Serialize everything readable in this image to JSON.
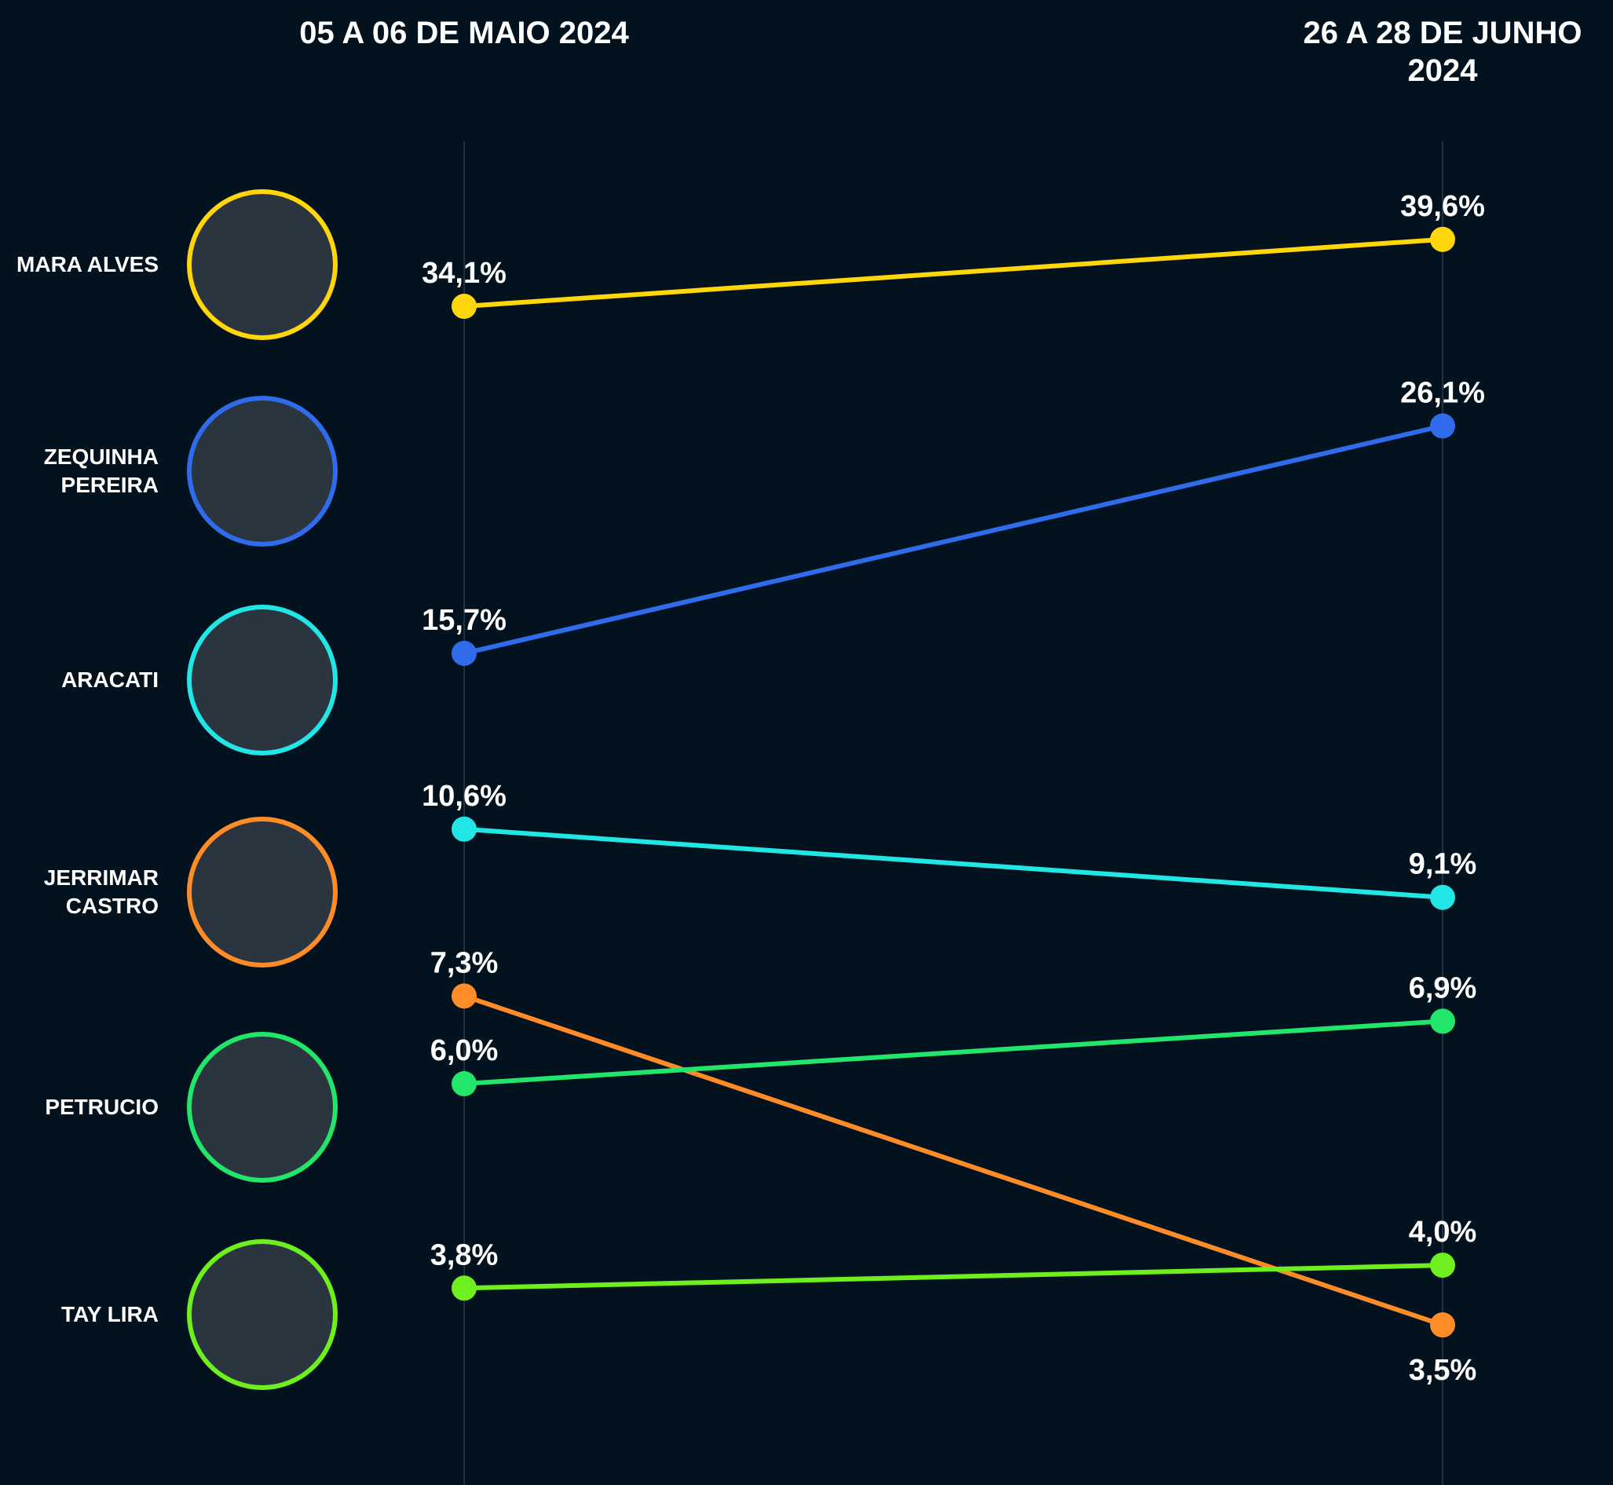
{
  "chart_data": {
    "type": "line",
    "categories": [
      "05 A 06 DE MAIO 2024",
      "26 A 28 DE JUNHO 2024"
    ],
    "log_scale": true,
    "ylim": [
      3,
      45
    ],
    "series": [
      {
        "name": "MARA ALVES",
        "color": "#ffd60a",
        "values": [
          34.1,
          39.6
        ],
        "value_labels": [
          "34,1%",
          "39,6%"
        ]
      },
      {
        "name": "ZEQUINHA PEREIRA",
        "color": "#2f6bea",
        "values": [
          15.7,
          26.1
        ],
        "value_labels": [
          "15,7%",
          "26,1%"
        ]
      },
      {
        "name": "ARACATI",
        "color": "#22e6e6",
        "values": [
          10.6,
          9.1
        ],
        "value_labels": [
          "10,6%",
          "9,1%"
        ]
      },
      {
        "name": "JERRIMAR CASTRO",
        "color": "#ff8c26",
        "values": [
          7.3,
          3.5
        ],
        "value_labels": [
          "7,3%",
          "3,5%"
        ]
      },
      {
        "name": "PETRUCIO",
        "color": "#22e66a",
        "values": [
          6.0,
          6.9
        ],
        "value_labels": [
          "6,0%",
          "6,9%"
        ]
      },
      {
        "name": "TAY LIRA",
        "color": "#6ef01e",
        "values": [
          3.8,
          4.0
        ],
        "value_labels": [
          "3,8%",
          "4,0%"
        ]
      }
    ]
  }
}
